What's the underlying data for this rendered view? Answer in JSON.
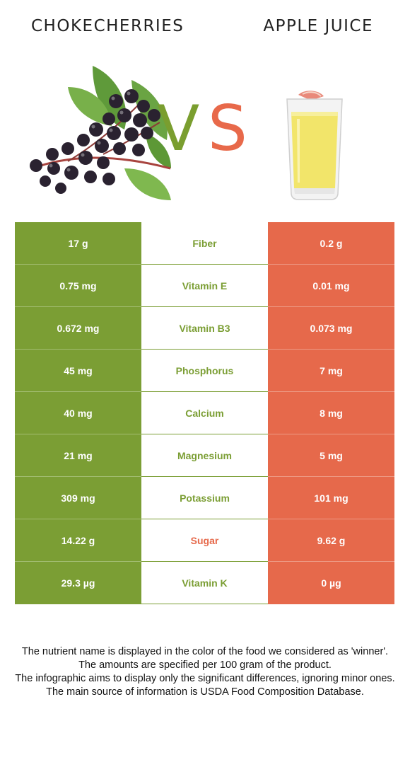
{
  "header": {
    "left_food": "CHOKECHERRIES",
    "right_food": "APPLE JUICE",
    "vs_v": "V",
    "vs_s": "S"
  },
  "colors": {
    "left_food": "#7b9e34",
    "right_food": "#e6694b",
    "neutral": "#ffffff"
  },
  "illustrations": {
    "left": "chokecherries-icon",
    "right": "apple-juice-glass-icon"
  },
  "comparison": {
    "rows": [
      {
        "nutrient": "Fiber",
        "left": "17 g",
        "right": "0.2 g",
        "winner": "left"
      },
      {
        "nutrient": "Vitamin E",
        "left": "0.75 mg",
        "right": "0.01 mg",
        "winner": "left"
      },
      {
        "nutrient": "Vitamin B3",
        "left": "0.672 mg",
        "right": "0.073 mg",
        "winner": "left"
      },
      {
        "nutrient": "Phosphorus",
        "left": "45 mg",
        "right": "7 mg",
        "winner": "left"
      },
      {
        "nutrient": "Calcium",
        "left": "40 mg",
        "right": "8 mg",
        "winner": "left"
      },
      {
        "nutrient": "Magnesium",
        "left": "21 mg",
        "right": "5 mg",
        "winner": "left"
      },
      {
        "nutrient": "Potassium",
        "left": "309 mg",
        "right": "101 mg",
        "winner": "left"
      },
      {
        "nutrient": "Sugar",
        "left": "14.22 g",
        "right": "9.62 g",
        "winner": "right"
      },
      {
        "nutrient": "Vitamin K",
        "left": "29.3 µg",
        "right": "0 µg",
        "winner": "left"
      }
    ]
  },
  "footnote": {
    "line1": "The nutrient name is displayed in the color of the food we considered as 'winner'.",
    "line2": "The amounts are specified per 100 gram of the product.",
    "line3": "The infographic aims to display only the significant differences, ignoring minor ones.",
    "line4": "The main source of information is USDA Food Composition Database."
  }
}
